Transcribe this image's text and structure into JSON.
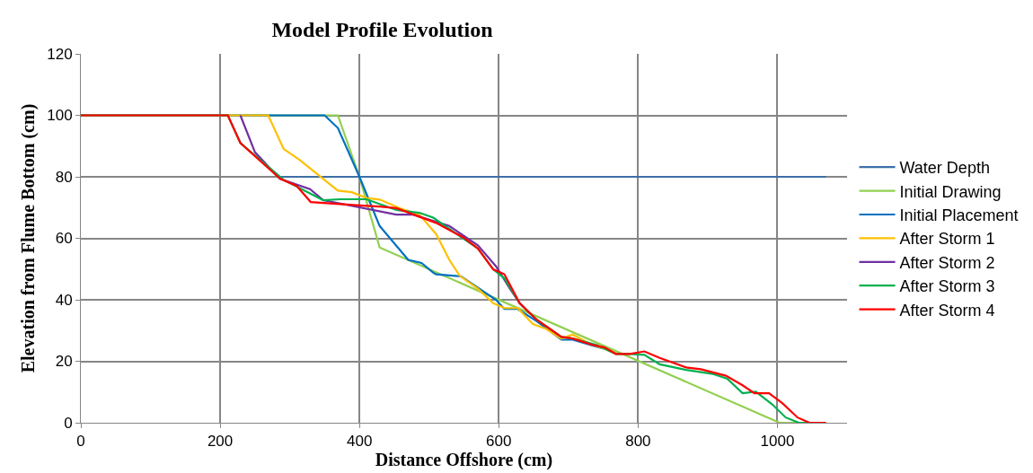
{
  "chart_data": {
    "type": "line",
    "title": "Model Profile Evolution",
    "xlabel": "Distance Offshore (cm)",
    "ylabel": "Elevation from Flume Bottom (cm)",
    "xlim": [
      0,
      1100
    ],
    "xticks": [
      0,
      200,
      400,
      600,
      800,
      1000
    ],
    "ylim": [
      0,
      120
    ],
    "yticks": [
      0,
      20,
      40,
      60,
      80,
      100,
      120
    ],
    "grid": true,
    "legend": "right",
    "marker": "none",
    "line_style": "solid",
    "series": [
      {
        "name": "Water Depth",
        "color": "#3e6fa8",
        "x": [
          288,
          1070
        ],
        "values": [
          80,
          80
        ]
      },
      {
        "name": "Initial Drawing",
        "color": "#92d050",
        "x": [
          0,
          369,
          400,
          429,
          596,
          1003,
          1040
        ],
        "values": [
          100,
          100,
          80,
          57,
          40.4,
          0,
          0
        ]
      },
      {
        "name": "Initial Placement",
        "color": "#0070c0",
        "x": [
          0,
          350,
          369,
          400,
          429,
          470,
          489,
          506,
          510,
          546,
          596,
          608,
          627,
          654,
          690,
          706,
          749
        ],
        "values": [
          100,
          100,
          95.9,
          80,
          64,
          53,
          52,
          48.8,
          48.3,
          47.6,
          40,
          37,
          37,
          33.1,
          27,
          27,
          24.2
        ]
      },
      {
        "name": "After Storm 1",
        "color": "#ffc000",
        "x": [
          0,
          269,
          291,
          314,
          369,
          389,
          410,
          429,
          458,
          486,
          510,
          529,
          544,
          570,
          592,
          608,
          627,
          649,
          668,
          690,
          706,
          730,
          768
        ],
        "values": [
          100,
          100,
          89.1,
          85.5,
          75.5,
          75,
          73.1,
          72.6,
          69.8,
          67.7,
          61.4,
          53,
          47.8,
          43.6,
          38.9,
          37.3,
          37.3,
          32.1,
          30.5,
          27.4,
          28.7,
          25.8,
          22.7
        ]
      },
      {
        "name": "After Storm 2",
        "color": "#7030a0",
        "x": [
          229,
          250,
          286,
          329,
          348,
          453,
          477,
          529,
          570,
          596,
          616,
          630,
          654
        ],
        "values": [
          100,
          88,
          79.3,
          76,
          72.4,
          67.7,
          67.7,
          64,
          57.7,
          50.9,
          43.6,
          38.9,
          33.6
        ]
      },
      {
        "name": "After Storm 3",
        "color": "#00b050",
        "x": [
          0,
          211,
          229,
          291,
          348,
          372,
          410,
          453,
          486,
          506,
          553,
          570,
          592,
          608,
          630,
          654,
          690,
          706,
          740,
          768,
          788,
          809,
          831,
          869,
          907,
          928,
          950,
          969,
          993,
          1012,
          1031,
          1046
        ],
        "values": [
          100,
          100,
          91,
          79,
          72.4,
          72.7,
          72.7,
          69.2,
          68.3,
          66.7,
          59.3,
          56.7,
          49.9,
          47,
          38.9,
          33.6,
          27.9,
          27.4,
          25.3,
          22.4,
          22.4,
          22.1,
          19,
          17.2,
          15.9,
          14.3,
          9.6,
          10.1,
          5.9,
          1.7,
          0,
          0
        ]
      },
      {
        "name": "After Storm 4",
        "color": "#ff0000",
        "x": [
          0,
          211,
          229,
          286,
          310,
          330,
          405,
          429,
          453,
          510,
          549,
          570,
          592,
          608,
          630,
          654,
          690,
          706,
          735,
          752,
          768,
          788,
          809,
          831,
          869,
          890,
          926,
          950,
          967,
          988,
          1007,
          1029,
          1046,
          1070
        ],
        "values": [
          100,
          100,
          91,
          79.4,
          77,
          71.8,
          70.6,
          70.3,
          69.8,
          65,
          60.3,
          56.7,
          49.9,
          48.3,
          38.9,
          33.6,
          27.9,
          27.4,
          25.3,
          24.5,
          22.4,
          22.4,
          23.2,
          21.1,
          18,
          17.4,
          15.3,
          12.2,
          9.6,
          9.6,
          6.4,
          1.7,
          0,
          0
        ]
      }
    ]
  }
}
